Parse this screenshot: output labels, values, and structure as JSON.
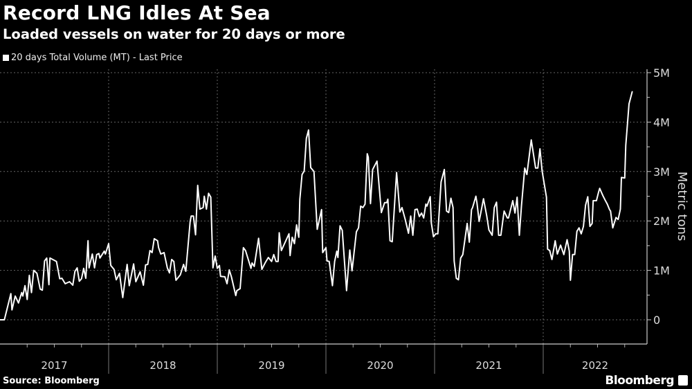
{
  "header": {
    "title": "Record LNG Idles At Sea",
    "subtitle": "Loaded vessels on water for 20 days or more",
    "legend_label": "20 days Total Volume (MT) - Last Price"
  },
  "footer": {
    "source": "Source: Bloomberg",
    "brand": "Bloomberg"
  },
  "colors": {
    "background": "#000000",
    "line": "#ffffff",
    "grid": "#666666"
  },
  "chart_data": {
    "type": "line",
    "title": "Record LNG Idles At Sea",
    "subtitle": "Loaded vessels on water for 20 days or more",
    "ylabel": "Metric tons",
    "xlabel": "",
    "ylim": [
      0,
      5
    ],
    "y_unit": "million metric tons",
    "y_axis_position": "right",
    "grid": true,
    "legend_position": "top-left",
    "y_ticks": [
      {
        "value": 0,
        "label": "0"
      },
      {
        "value": 1,
        "label": "1M"
      },
      {
        "value": 2,
        "label": "2M"
      },
      {
        "value": 3,
        "label": "3M"
      },
      {
        "value": 4,
        "label": "4M"
      },
      {
        "value": 5,
        "label": "5M"
      }
    ],
    "x_ticks": [
      "2017",
      "2018",
      "2019",
      "2020",
      "2021",
      "2022"
    ],
    "series": [
      {
        "name": "20 days Total Volume (MT) - Last Price",
        "x": [
          2017.0,
          2017.04,
          2017.1,
          2017.11,
          2017.14,
          2017.17,
          2017.2,
          2017.21,
          2017.23,
          2017.25,
          2017.27,
          2017.29,
          2017.31,
          2017.34,
          2017.37,
          2017.39,
          2017.41,
          2017.43,
          2017.45,
          2017.46,
          2017.52,
          2017.55,
          2017.57,
          2017.6,
          2017.64,
          2017.67,
          2017.69,
          2017.71,
          2017.73,
          2017.75,
          2017.77,
          2017.79,
          2017.81,
          2017.82,
          2017.85,
          2017.87,
          2017.89,
          2017.91,
          2017.92,
          2017.96,
          2017.97,
          2018.0,
          2018.02,
          2018.05,
          2018.07,
          2018.1,
          2018.13,
          2018.17,
          2018.19,
          2018.23,
          2018.25,
          2018.29,
          2018.32,
          2018.34,
          2018.36,
          2018.38,
          2018.4,
          2018.42,
          2018.45,
          2018.46,
          2018.48,
          2018.51,
          2018.54,
          2018.56,
          2018.58,
          2018.6,
          2018.62,
          2018.66,
          2018.69,
          2018.71,
          2018.75,
          2018.76,
          2018.78,
          2018.8,
          2018.82,
          2018.84,
          2018.87,
          2018.88,
          2018.9,
          2018.92,
          2018.94,
          2018.96,
          2018.98,
          2019.0,
          2019.02,
          2019.03,
          2019.07,
          2019.09,
          2019.11,
          2019.13,
          2019.17,
          2019.18,
          2019.21,
          2019.24,
          2019.26,
          2019.31,
          2019.32,
          2019.34,
          2019.38,
          2019.41,
          2019.44,
          2019.47,
          2019.5,
          2019.52,
          2019.54,
          2019.56,
          2019.57,
          2019.59,
          2019.66,
          2019.67,
          2019.69,
          2019.71,
          2019.73,
          2019.75,
          2019.76,
          2019.78,
          2019.8,
          2019.82,
          2019.84,
          2019.86,
          2019.89,
          2019.92,
          2019.96,
          2019.97,
          2020.0,
          2020.01,
          2020.03,
          2020.06,
          2020.08,
          2020.1,
          2020.11,
          2020.13,
          2020.15,
          2020.19,
          2020.22,
          2020.24,
          2020.28,
          2020.3,
          2020.32,
          2020.34,
          2020.36,
          2020.38,
          2020.39,
          2020.41,
          2020.43,
          2020.47,
          2020.51,
          2020.54,
          2020.56,
          2020.57,
          2020.59,
          2020.61,
          2020.65,
          2020.68,
          2020.7,
          2020.73,
          2020.76,
          2020.78,
          2020.8,
          2020.82,
          2020.84,
          2020.86,
          2020.88,
          2020.9,
          2020.92,
          2020.93,
          2020.96,
          2020.97,
          2020.99,
          2021.01,
          2021.03,
          2021.06,
          2021.09,
          2021.11,
          2021.13,
          2021.15,
          2021.17,
          2021.18,
          2021.2,
          2021.22,
          2021.24,
          2021.26,
          2021.3,
          2021.32,
          2021.34,
          2021.35,
          2021.38,
          2021.39,
          2021.41,
          2021.45,
          2021.48,
          2021.5,
          2021.53,
          2021.55,
          2021.57,
          2021.59,
          2021.61,
          2021.64,
          2021.67,
          2021.68,
          2021.72,
          2021.74,
          2021.76,
          2021.78,
          2021.8,
          2021.83,
          2021.85,
          2021.89,
          2021.93,
          2021.95,
          2021.97,
          2021.99,
          2022.03,
          2022.04,
          2022.06,
          2022.08,
          2022.11,
          2022.13,
          2022.16,
          2022.19,
          2022.22,
          2022.24,
          2022.25,
          2022.27,
          2022.29,
          2022.31,
          2022.33,
          2022.35,
          2022.37,
          2022.39,
          2022.41,
          2022.43,
          2022.45,
          2022.46,
          2022.49,
          2022.51,
          2022.52,
          2022.55,
          2022.57,
          2022.59,
          2022.61,
          2022.62,
          2022.64,
          2022.67,
          2022.69,
          2022.71,
          2022.72,
          2022.75,
          2022.76,
          2022.79,
          2022.82
        ],
        "y": [
          0,
          0,
          0.53,
          0.2,
          0.48,
          0.34,
          0.55,
          0.48,
          0.69,
          0.41,
          0.9,
          0.55,
          1.0,
          0.94,
          0.62,
          0.6,
          1.19,
          1.25,
          0.71,
          1.25,
          1.18,
          0.83,
          0.84,
          0.73,
          0.77,
          0.7,
          0.98,
          1.05,
          0.78,
          0.83,
          1.04,
          0.84,
          1.6,
          1.05,
          1.33,
          1.05,
          1.32,
          1.34,
          1.25,
          1.39,
          1.33,
          1.54,
          1.1,
          1.02,
          0.81,
          0.94,
          0.45,
          1.12,
          0.69,
          1.13,
          0.77,
          0.97,
          0.7,
          1.11,
          1.12,
          1.4,
          1.36,
          1.64,
          1.6,
          1.46,
          1.33,
          1.36,
          1.05,
          0.95,
          1.22,
          1.18,
          0.8,
          0.91,
          1.12,
          0.98,
          1.99,
          2.1,
          2.1,
          1.72,
          2.72,
          2.24,
          2.27,
          2.5,
          2.24,
          2.56,
          2.48,
          1.05,
          1.29,
          1.04,
          1.1,
          0.88,
          0.87,
          0.73,
          1.01,
          0.87,
          0.49,
          0.59,
          0.63,
          1.46,
          1.4,
          1.04,
          1.15,
          1.08,
          1.65,
          1.02,
          1.15,
          1.26,
          1.18,
          1.32,
          1.18,
          1.18,
          1.76,
          1.4,
          1.74,
          1.3,
          1.67,
          1.54,
          1.92,
          1.67,
          2.44,
          2.94,
          3.01,
          3.67,
          3.84,
          3.08,
          3.0,
          1.83,
          2.23,
          1.36,
          1.46,
          1.19,
          1.18,
          0.69,
          1.18,
          1.39,
          1.26,
          1.9,
          1.81,
          0.59,
          1.41,
          0.99,
          1.78,
          1.86,
          2.3,
          2.27,
          2.34,
          3.36,
          3.29,
          2.35,
          3.04,
          3.21,
          2.17,
          2.37,
          2.37,
          2.44,
          1.6,
          1.58,
          2.98,
          2.18,
          2.27,
          2.03,
          1.75,
          2.1,
          1.71,
          2.23,
          2.24,
          2.09,
          2.16,
          2.06,
          2.34,
          2.3,
          2.49,
          1.96,
          1.68,
          1.74,
          1.74,
          2.79,
          3.04,
          2.2,
          2.17,
          2.46,
          2.27,
          1.19,
          0.84,
          0.81,
          1.25,
          1.32,
          1.95,
          1.57,
          2.23,
          2.27,
          2.5,
          2.37,
          1.99,
          2.45,
          2.1,
          1.82,
          1.71,
          2.27,
          2.38,
          1.71,
          1.71,
          2.2,
          2.06,
          2.06,
          2.41,
          2.16,
          2.48,
          1.71,
          2.31,
          3.07,
          2.94,
          3.64,
          3.07,
          3.07,
          3.46,
          3.01,
          2.48,
          1.43,
          1.4,
          1.22,
          1.6,
          1.33,
          1.51,
          1.32,
          1.62,
          1.39,
          0.8,
          1.32,
          1.32,
          1.79,
          1.86,
          1.74,
          1.89,
          2.32,
          2.49,
          1.89,
          1.95,
          2.41,
          2.41,
          2.59,
          2.66,
          2.51,
          2.42,
          2.34,
          2.23,
          2.2,
          1.86,
          2.07,
          2.03,
          2.24,
          2.88,
          2.87,
          3.53,
          4.37,
          4.62
        ]
      }
    ]
  }
}
